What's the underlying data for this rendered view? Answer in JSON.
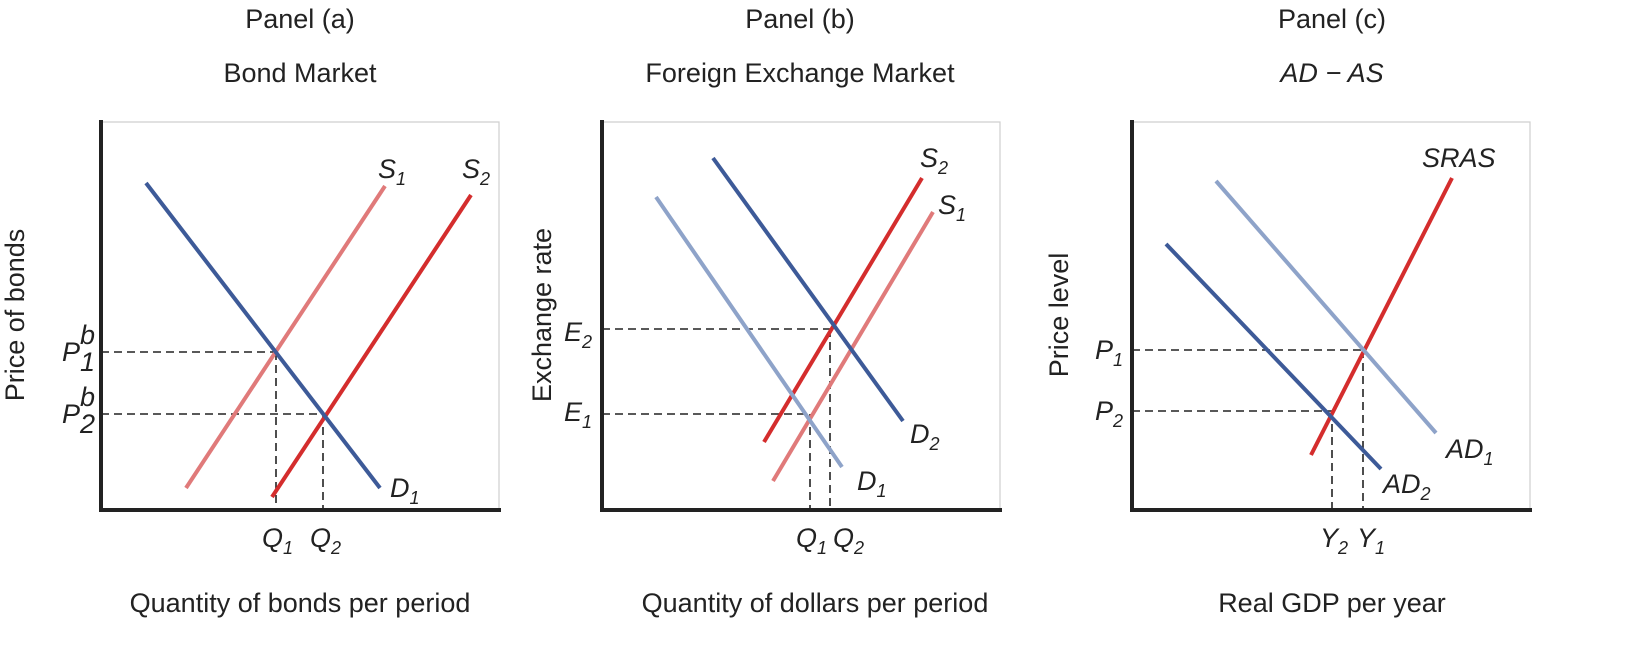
{
  "colors": {
    "demand_original": "#3d5a98",
    "demand_shifted": "#8ea3c9",
    "supply_original": "#e07a7a",
    "supply_shifted": "#d42d2d",
    "axis": "#222222",
    "text": "#222222"
  },
  "panels": [
    {
      "id": "a",
      "heading": "Panel (a)",
      "title": "Bond Market",
      "xlabel": "Quantity of bonds per period",
      "ylabel": "Price of bonds",
      "curves": [
        {
          "id": "S1",
          "label": "S",
          "sub": "1",
          "role": "supply-original"
        },
        {
          "id": "S2",
          "label": "S",
          "sub": "2",
          "role": "supply-shifted"
        },
        {
          "id": "D1",
          "label": "D",
          "sub": "1",
          "role": "demand-original"
        }
      ],
      "yticks": [
        {
          "label": "P",
          "sup": "b",
          "sub": "1"
        },
        {
          "label": "P",
          "sup": "b",
          "sub": "2"
        }
      ],
      "xticks": [
        {
          "label": "Q",
          "sub": "1"
        },
        {
          "label": "Q",
          "sub": "2"
        }
      ]
    },
    {
      "id": "b",
      "heading": "Panel (b)",
      "title": "Foreign Exchange Market",
      "xlabel": "Quantity of dollars per period",
      "ylabel": "Exchange rate",
      "curves": [
        {
          "id": "S2",
          "label": "S",
          "sub": "2",
          "role": "supply-shifted"
        },
        {
          "id": "S1",
          "label": "S",
          "sub": "1",
          "role": "supply-original"
        },
        {
          "id": "D2",
          "label": "D",
          "sub": "2",
          "role": "demand-original"
        },
        {
          "id": "D1",
          "label": "D",
          "sub": "1",
          "role": "demand-shifted"
        }
      ],
      "yticks": [
        {
          "label": "E",
          "sub": "2"
        },
        {
          "label": "E",
          "sub": "1"
        }
      ],
      "xticks": [
        {
          "label": "Q",
          "sub": "1"
        },
        {
          "label": "Q",
          "sub": "2"
        }
      ]
    },
    {
      "id": "c",
      "heading": "Panel (c)",
      "title": "AD − AS",
      "xlabel": "Real GDP per year",
      "ylabel": "Price level",
      "curves": [
        {
          "id": "SRAS",
          "label": "SRAS",
          "sub": "",
          "role": "supply-shifted"
        },
        {
          "id": "AD1",
          "label": "AD",
          "sub": "1",
          "role": "demand-shifted"
        },
        {
          "id": "AD2",
          "label": "AD",
          "sub": "2",
          "role": "demand-original"
        }
      ],
      "yticks": [
        {
          "label": "P",
          "sub": "1"
        },
        {
          "label": "P",
          "sub": "2"
        }
      ],
      "xticks": [
        {
          "label": "Y",
          "sub": "2"
        },
        {
          "label": "Y",
          "sub": "1"
        }
      ]
    }
  ]
}
